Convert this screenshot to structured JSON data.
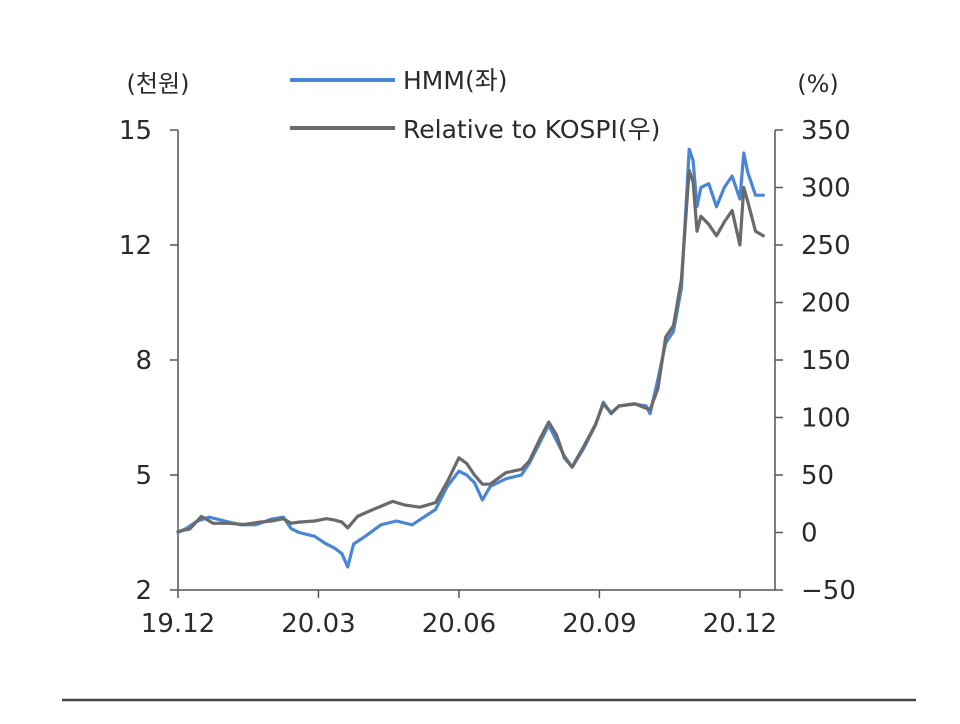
{
  "chart_data": {
    "type": "line",
    "left_unit": "(천원)",
    "right_unit": "(%)",
    "x_ticks": [
      "19.12",
      "20.03",
      "20.06",
      "20.09",
      "20.12"
    ],
    "y_left_ticks": [
      "15",
      "12",
      "8",
      "5",
      "2"
    ],
    "y_right_ticks": [
      "350",
      "300",
      "250",
      "200",
      "150",
      "100",
      "50",
      "0",
      "−50"
    ],
    "left_axis_tick_values": [
      15,
      12,
      8,
      5,
      2
    ],
    "right_axis_range": [
      -50,
      350
    ],
    "right_axis_tick_values": [
      350,
      300,
      250,
      200,
      150,
      100,
      50,
      0,
      -50
    ],
    "grid": false,
    "legend_position": "top-center",
    "series": [
      {
        "name": "HMM(좌)",
        "axis": "left",
        "color": "#4a86d6",
        "points": [
          [
            0,
            3.5
          ],
          [
            2,
            3.6
          ],
          [
            5,
            3.8
          ],
          [
            8,
            3.9
          ],
          [
            12,
            3.8
          ],
          [
            16,
            3.7
          ],
          [
            20,
            3.7
          ],
          [
            24,
            3.85
          ],
          [
            27,
            3.9
          ],
          [
            29,
            3.6
          ],
          [
            31,
            3.5
          ],
          [
            35,
            3.4
          ],
          [
            38,
            3.2
          ],
          [
            40,
            3.1
          ],
          [
            42,
            2.95
          ],
          [
            43.5,
            2.6
          ],
          [
            45,
            3.2
          ],
          [
            48,
            3.4
          ],
          [
            52,
            3.7
          ],
          [
            56,
            3.8
          ],
          [
            60,
            3.7
          ],
          [
            63,
            3.9
          ],
          [
            66,
            4.1
          ],
          [
            69,
            4.7
          ],
          [
            72,
            5.1
          ],
          [
            74,
            5.0
          ],
          [
            76,
            4.8
          ],
          [
            78,
            4.35
          ],
          [
            80,
            4.7
          ],
          [
            84,
            4.9
          ],
          [
            88,
            5.0
          ],
          [
            90,
            5.3
          ],
          [
            93,
            5.9
          ],
          [
            95,
            6.3
          ],
          [
            97,
            5.9
          ],
          [
            99,
            5.5
          ],
          [
            101,
            5.2
          ],
          [
            104,
            5.7
          ],
          [
            107,
            6.3
          ],
          [
            109,
            6.9
          ],
          [
            111,
            6.6
          ],
          [
            113,
            6.8
          ],
          [
            117,
            6.85
          ],
          [
            120,
            6.8
          ],
          [
            121,
            6.6
          ],
          [
            123,
            7.5
          ],
          [
            125,
            8.6
          ],
          [
            127,
            9.0
          ],
          [
            129,
            10.5
          ],
          [
            131,
            14.5
          ],
          [
            132,
            14.2
          ],
          [
            133,
            13.0
          ],
          [
            134,
            13.5
          ],
          [
            136,
            13.6
          ],
          [
            138,
            13.0
          ],
          [
            140,
            13.5
          ],
          [
            142,
            13.8
          ],
          [
            144,
            13.2
          ],
          [
            145,
            14.4
          ],
          [
            146,
            13.9
          ],
          [
            148,
            13.3
          ],
          [
            150,
            13.3
          ]
        ]
      },
      {
        "name": "Relative to KOSPI(우)",
        "axis": "right",
        "color": "#6a6a6a",
        "points": [
          [
            0,
            1
          ],
          [
            3,
            3
          ],
          [
            6,
            14
          ],
          [
            9,
            8
          ],
          [
            13,
            8
          ],
          [
            17,
            7
          ],
          [
            21,
            9
          ],
          [
            24,
            10
          ],
          [
            27,
            12
          ],
          [
            29,
            8
          ],
          [
            31,
            9
          ],
          [
            35,
            10
          ],
          [
            38,
            12
          ],
          [
            40,
            11
          ],
          [
            42,
            9
          ],
          [
            43.5,
            4
          ],
          [
            46,
            14
          ],
          [
            50,
            20
          ],
          [
            55,
            27
          ],
          [
            58,
            24
          ],
          [
            62,
            22
          ],
          [
            66,
            26
          ],
          [
            69,
            44
          ],
          [
            72,
            65
          ],
          [
            74,
            60
          ],
          [
            76,
            50
          ],
          [
            78,
            42
          ],
          [
            80,
            42
          ],
          [
            84,
            52
          ],
          [
            88,
            55
          ],
          [
            90,
            62
          ],
          [
            93,
            83
          ],
          [
            95,
            96
          ],
          [
            97,
            85
          ],
          [
            99,
            65
          ],
          [
            101,
            57
          ],
          [
            104,
            75
          ],
          [
            107,
            94
          ],
          [
            109,
            112
          ],
          [
            111,
            104
          ],
          [
            113,
            110
          ],
          [
            117,
            112
          ],
          [
            120,
            108
          ],
          [
            121,
            107
          ],
          [
            123,
            125
          ],
          [
            125,
            170
          ],
          [
            127,
            180
          ],
          [
            129,
            220
          ],
          [
            131,
            315
          ],
          [
            132,
            305
          ],
          [
            133,
            262
          ],
          [
            134,
            275
          ],
          [
            136,
            268
          ],
          [
            138,
            258
          ],
          [
            140,
            270
          ],
          [
            142,
            280
          ],
          [
            144,
            250
          ],
          [
            145,
            300
          ],
          [
            146,
            288
          ],
          [
            148,
            262
          ],
          [
            150,
            258
          ]
        ]
      }
    ]
  }
}
